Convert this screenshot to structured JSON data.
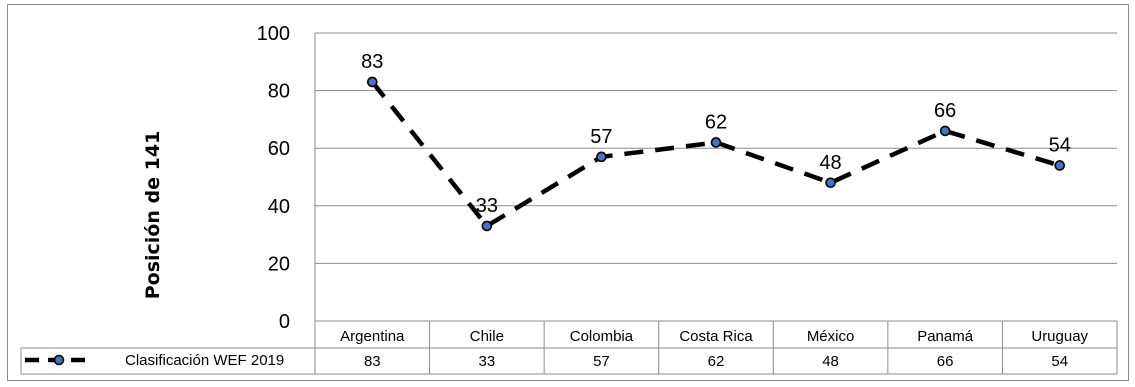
{
  "chart_data": {
    "type": "line",
    "ylabel": "Posición de 141",
    "ylim": [
      0,
      100
    ],
    "yticks": [
      0,
      20,
      40,
      60,
      80,
      100
    ],
    "categories": [
      "Argentina",
      "Chile",
      "Colombia",
      "Costa Rica",
      "México",
      "Panamá",
      "Uruguay"
    ],
    "series": [
      {
        "name": "Clasificación WEF 2019",
        "values": [
          83,
          33,
          57,
          62,
          48,
          66,
          54
        ]
      }
    ],
    "data_labels": true,
    "gridlines": "horizontal",
    "legend": "data-table-row",
    "colors": {
      "line": "#000000",
      "marker_fill": "#4472c4",
      "grid": "#8c8c8c",
      "border": "#8c8c8c"
    }
  }
}
